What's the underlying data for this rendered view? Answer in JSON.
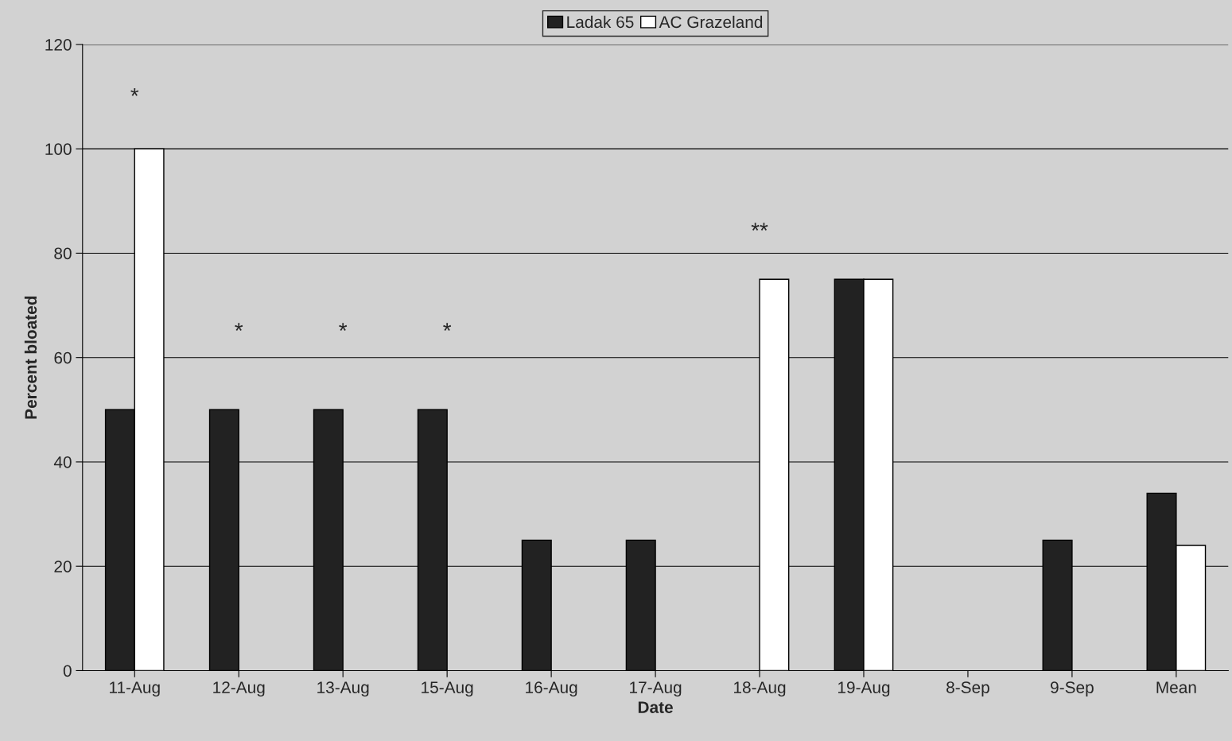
{
  "chart_data": {
    "type": "bar",
    "xlabel": "Date",
    "ylabel": "Percent bloated",
    "categories": [
      "11-Aug",
      "12-Aug",
      "13-Aug",
      "15-Aug",
      "16-Aug",
      "17-Aug",
      "18-Aug",
      "19-Aug",
      "8-Sep",
      "9-Sep",
      "Mean"
    ],
    "series": [
      {
        "name": "Ladak 65",
        "color": "#222222",
        "values": [
          50,
          50,
          50,
          50,
          25,
          25,
          null,
          75,
          null,
          25,
          34
        ]
      },
      {
        "name": "AC Grazeland",
        "color": "#ffffff",
        "values": [
          100,
          null,
          null,
          null,
          null,
          null,
          75,
          75,
          null,
          null,
          24
        ]
      }
    ],
    "ylim": [
      0,
      120
    ],
    "yticks": [
      0,
      20,
      40,
      60,
      80,
      100,
      120
    ],
    "grid": "y",
    "legend": "top",
    "annotations": [
      "*",
      "*",
      "*",
      "*",
      "**"
    ]
  }
}
